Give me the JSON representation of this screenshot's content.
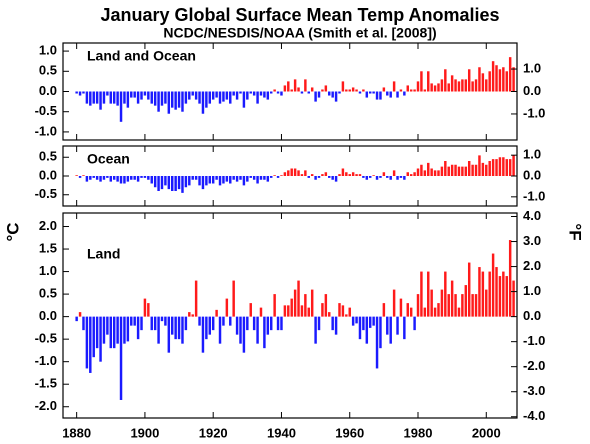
{
  "chart_data": [
    {
      "type": "bar",
      "title": "January Global Surface Mean Temp Anomalies",
      "subtitle": "NCDC/NESDIS/NOAA (Smith et al. [2008])",
      "label": "Land and Ocean",
      "positive_color": "#ff1a1a",
      "negative_color": "#1a1aff",
      "xlim": [
        1876,
        2009
      ],
      "ylim": [
        -1.2,
        1.2
      ],
      "yticks": [
        {
          "value": 1,
          "label": "1.0"
        },
        0.5,
        {
          "value": 0,
          "label": "0.0"
        },
        -0.5,
        {
          "value": -1,
          "label": "-1.0"
        }
      ],
      "y2lim": [
        -2.16,
        2.16
      ],
      "y2ticks": [
        {
          "value": 1,
          "label": "1.0"
        },
        {
          "value": 0,
          "label": "0.0"
        },
        {
          "value": -1,
          "label": "-1.0"
        }
      ],
      "x": [
        1880,
        1881,
        1882,
        1883,
        1884,
        1885,
        1886,
        1887,
        1888,
        1889,
        1890,
        1891,
        1892,
        1893,
        1894,
        1895,
        1896,
        1897,
        1898,
        1899,
        1900,
        1901,
        1902,
        1903,
        1904,
        1905,
        1906,
        1907,
        1908,
        1909,
        1910,
        1911,
        1912,
        1913,
        1914,
        1915,
        1916,
        1917,
        1918,
        1919,
        1920,
        1921,
        1922,
        1923,
        1924,
        1925,
        1926,
        1927,
        1928,
        1929,
        1930,
        1931,
        1932,
        1933,
        1934,
        1935,
        1936,
        1937,
        1938,
        1939,
        1940,
        1941,
        1942,
        1943,
        1944,
        1945,
        1946,
        1947,
        1948,
        1949,
        1950,
        1951,
        1952,
        1953,
        1954,
        1955,
        1956,
        1957,
        1958,
        1959,
        1960,
        1961,
        1962,
        1963,
        1964,
        1965,
        1966,
        1967,
        1968,
        1969,
        1970,
        1971,
        1972,
        1973,
        1974,
        1975,
        1976,
        1977,
        1978,
        1979,
        1980,
        1981,
        1982,
        1983,
        1984,
        1985,
        1986,
        1987,
        1988,
        1989,
        1990,
        1991,
        1992,
        1993,
        1994,
        1995,
        1996,
        1997,
        1998,
        1999,
        2000,
        2001,
        2002,
        2003,
        2004,
        2005,
        2006,
        2007,
        2008
      ],
      "values": [
        -0.05,
        -0.1,
        -0.05,
        -0.3,
        -0.35,
        -0.3,
        -0.3,
        -0.45,
        -0.3,
        -0.1,
        -0.3,
        -0.3,
        -0.35,
        -0.75,
        -0.3,
        -0.4,
        -0.15,
        -0.15,
        -0.3,
        -0.2,
        -0.1,
        -0.2,
        -0.3,
        -0.35,
        -0.5,
        -0.35,
        -0.3,
        -0.55,
        -0.4,
        -0.45,
        -0.4,
        -0.5,
        -0.3,
        -0.2,
        -0.1,
        -0.2,
        -0.3,
        -0.55,
        -0.4,
        -0.3,
        -0.2,
        -0.15,
        -0.3,
        -0.25,
        -0.2,
        -0.3,
        -0.1,
        -0.2,
        -0.05,
        -0.4,
        -0.2,
        -0.05,
        -0.1,
        -0.3,
        -0.1,
        -0.15,
        -0.2,
        -0.05,
        0.05,
        -0.05,
        -0.1,
        0.15,
        0.25,
        0.05,
        0.3,
        0.1,
        -0.05,
        0.3,
        -0.05,
        0.1,
        -0.25,
        -0.15,
        0.05,
        0.15,
        -0.1,
        -0.15,
        -0.25,
        -0.05,
        0.25,
        0.05,
        0.05,
        0.1,
        0.05,
        -0.05,
        0.05,
        -0.15,
        -0.05,
        -0.05,
        -0.2,
        -0.2,
        0.1,
        -0.1,
        -0.15,
        0.25,
        -0.15,
        0.05,
        -0.1,
        0.15,
        0.05,
        0.05,
        0.25,
        0.5,
        0.05,
        0.5,
        0.2,
        0.15,
        0.2,
        0.3,
        0.55,
        0.2,
        0.4,
        0.3,
        0.25,
        0.3,
        0.3,
        0.55,
        0.25,
        0.3,
        0.6,
        0.45,
        0.3,
        0.5,
        0.75,
        0.65,
        0.55,
        0.6,
        0.5,
        0.85,
        0.6
      ]
    },
    {
      "type": "bar",
      "label": "Ocean",
      "positive_color": "#ff1a1a",
      "negative_color": "#1a1aff",
      "xlim": [
        1876,
        2009
      ],
      "ylim": [
        -0.8,
        0.8
      ],
      "yticks": [
        0.5,
        {
          "value": 0,
          "label": "0.0"
        },
        -0.5
      ],
      "y2lim": [
        -1.44,
        1.44
      ],
      "y2ticks": [
        {
          "value": 1,
          "label": "1.0"
        },
        {
          "value": 0,
          "label": "0.0"
        },
        {
          "value": -1,
          "label": "-1.0"
        }
      ],
      "x": [
        1880,
        1881,
        1882,
        1883,
        1884,
        1885,
        1886,
        1887,
        1888,
        1889,
        1890,
        1891,
        1892,
        1893,
        1894,
        1895,
        1896,
        1897,
        1898,
        1899,
        1900,
        1901,
        1902,
        1903,
        1904,
        1905,
        1906,
        1907,
        1908,
        1909,
        1910,
        1911,
        1912,
        1913,
        1914,
        1915,
        1916,
        1917,
        1918,
        1919,
        1920,
        1921,
        1922,
        1923,
        1924,
        1925,
        1926,
        1927,
        1928,
        1929,
        1930,
        1931,
        1932,
        1933,
        1934,
        1935,
        1936,
        1937,
        1938,
        1939,
        1940,
        1941,
        1942,
        1943,
        1944,
        1945,
        1946,
        1947,
        1948,
        1949,
        1950,
        1951,
        1952,
        1953,
        1954,
        1955,
        1956,
        1957,
        1958,
        1959,
        1960,
        1961,
        1962,
        1963,
        1964,
        1965,
        1966,
        1967,
        1968,
        1969,
        1970,
        1971,
        1972,
        1973,
        1974,
        1975,
        1976,
        1977,
        1978,
        1979,
        1980,
        1981,
        1982,
        1983,
        1984,
        1985,
        1986,
        1987,
        1988,
        1989,
        1990,
        1991,
        1992,
        1993,
        1994,
        1995,
        1996,
        1997,
        1998,
        1999,
        2000,
        2001,
        2002,
        2003,
        2004,
        2005,
        2006,
        2007,
        2008
      ],
      "values": [
        0.02,
        -0.05,
        0.02,
        -0.15,
        -0.1,
        -0.05,
        -0.1,
        -0.15,
        -0.1,
        -0.05,
        -0.15,
        -0.1,
        -0.15,
        -0.2,
        -0.2,
        -0.15,
        -0.1,
        -0.1,
        -0.15,
        -0.05,
        -0.05,
        -0.1,
        -0.2,
        -0.3,
        -0.4,
        -0.35,
        -0.25,
        -0.35,
        -0.4,
        -0.4,
        -0.35,
        -0.45,
        -0.3,
        -0.25,
        -0.1,
        -0.1,
        -0.25,
        -0.35,
        -0.25,
        -0.2,
        -0.2,
        -0.1,
        -0.25,
        -0.2,
        -0.15,
        -0.2,
        -0.1,
        -0.15,
        -0.1,
        -0.25,
        -0.15,
        -0.05,
        -0.1,
        -0.2,
        -0.1,
        -0.1,
        -0.15,
        -0.05,
        0.02,
        -0.05,
        0.02,
        0.1,
        0.15,
        0.2,
        0.2,
        0.15,
        0.05,
        0.15,
        -0.05,
        0.05,
        -0.1,
        -0.05,
        0.05,
        0.1,
        -0.05,
        -0.1,
        -0.15,
        0.05,
        0.2,
        0.1,
        0.05,
        0.1,
        0.05,
        0.05,
        -0.05,
        -0.1,
        -0.05,
        0.02,
        -0.1,
        -0.05,
        0.1,
        -0.05,
        -0.1,
        0.15,
        -0.1,
        -0.05,
        -0.1,
        0.1,
        0.05,
        0.1,
        0.2,
        0.3,
        0.15,
        0.35,
        0.2,
        0.15,
        0.15,
        0.25,
        0.4,
        0.25,
        0.3,
        0.3,
        0.25,
        0.25,
        0.25,
        0.4,
        0.3,
        0.3,
        0.55,
        0.35,
        0.3,
        0.4,
        0.45,
        0.45,
        0.5,
        0.5,
        0.45,
        0.45,
        0.55
      ]
    },
    {
      "type": "bar",
      "label": "Land",
      "ylabel": "°C",
      "y2label": "°F",
      "positive_color": "#ff1a1a",
      "negative_color": "#1a1aff",
      "xlim": [
        1876,
        2009
      ],
      "xticks": [
        1880,
        1900,
        1920,
        1940,
        1960,
        1980,
        2000
      ],
      "ylim": [
        -2.25,
        2.3
      ],
      "yticks": [
        {
          "value": 2,
          "label": "2.0"
        },
        1.5,
        {
          "value": 1,
          "label": "1.0"
        },
        0.5,
        {
          "value": 0,
          "label": "0.0"
        },
        -0.5,
        {
          "value": -1,
          "label": "-1.0"
        },
        -1.5,
        {
          "value": -2,
          "label": "-2.0"
        }
      ],
      "y2lim": [
        -4.05,
        4.14
      ],
      "y2ticks": [
        {
          "value": 4,
          "label": "4.0"
        },
        {
          "value": 3,
          "label": "3.0"
        },
        {
          "value": 2,
          "label": "2.0"
        },
        {
          "value": 1,
          "label": "1.0"
        },
        {
          "value": 0,
          "label": "0.0"
        },
        {
          "value": -1,
          "label": "-1.0"
        },
        {
          "value": -2,
          "label": "-2.0"
        },
        {
          "value": -3,
          "label": "-3.0"
        },
        {
          "value": -4,
          "label": "-4.0"
        }
      ],
      "x": [
        1880,
        1881,
        1882,
        1883,
        1884,
        1885,
        1886,
        1887,
        1888,
        1889,
        1890,
        1891,
        1892,
        1893,
        1894,
        1895,
        1896,
        1897,
        1898,
        1899,
        1900,
        1901,
        1902,
        1903,
        1904,
        1905,
        1906,
        1907,
        1908,
        1909,
        1910,
        1911,
        1912,
        1913,
        1914,
        1915,
        1916,
        1917,
        1918,
        1919,
        1920,
        1921,
        1922,
        1923,
        1924,
        1925,
        1926,
        1927,
        1928,
        1929,
        1930,
        1931,
        1932,
        1933,
        1934,
        1935,
        1936,
        1937,
        1938,
        1939,
        1940,
        1941,
        1942,
        1943,
        1944,
        1945,
        1946,
        1947,
        1948,
        1949,
        1950,
        1951,
        1952,
        1953,
        1954,
        1955,
        1956,
        1957,
        1958,
        1959,
        1960,
        1961,
        1962,
        1963,
        1964,
        1965,
        1966,
        1967,
        1968,
        1969,
        1970,
        1971,
        1972,
        1973,
        1974,
        1975,
        1976,
        1977,
        1978,
        1979,
        1980,
        1981,
        1982,
        1983,
        1984,
        1985,
        1986,
        1987,
        1988,
        1989,
        1990,
        1991,
        1992,
        1993,
        1994,
        1995,
        1996,
        1997,
        1998,
        1999,
        2000,
        2001,
        2002,
        2003,
        2004,
        2005,
        2006,
        2007,
        2008
      ],
      "values": [
        -0.1,
        0.1,
        -0.3,
        -1.15,
        -1.25,
        -0.9,
        -0.7,
        -1.0,
        -0.6,
        -0.4,
        -0.7,
        -0.7,
        -0.6,
        -1.85,
        -0.6,
        -0.55,
        -0.2,
        -0.2,
        -0.5,
        -0.3,
        0.4,
        0.3,
        -0.3,
        -0.3,
        -0.6,
        -0.1,
        -0.2,
        -0.8,
        -0.4,
        -0.5,
        -0.5,
        -0.6,
        -0.3,
        0.1,
        0.05,
        0.8,
        -0.2,
        -0.8,
        -0.5,
        -0.4,
        -0.3,
        0.15,
        -0.6,
        -0.2,
        0.4,
        -0.2,
        0.8,
        -0.4,
        -0.6,
        -0.8,
        -0.3,
        0.3,
        -0.3,
        -0.6,
        0.2,
        -0.7,
        -0.4,
        -0.3,
        0.5,
        -0.3,
        -0.3,
        0.25,
        0.25,
        0.4,
        0.6,
        0.8,
        0.25,
        0.5,
        0.2,
        0.6,
        -0.6,
        -0.3,
        0.3,
        0.5,
        0.1,
        -0.3,
        -0.4,
        0.3,
        0.25,
        0.05,
        0.2,
        -0.2,
        -0.15,
        -0.5,
        -0.3,
        -0.6,
        -0.25,
        -0.2,
        -1.15,
        -0.7,
        0.3,
        -0.4,
        -0.6,
        0.6,
        -0.4,
        0.4,
        -0.5,
        0.3,
        0.2,
        -0.3,
        0.5,
        1.0,
        0.2,
        1.0,
        0.6,
        0.2,
        0.3,
        0.6,
        1.0,
        0.5,
        0.8,
        0.5,
        0.2,
        0.5,
        0.7,
        1.2,
        0.5,
        0.5,
        1.1,
        1.0,
        0.6,
        1.0,
        1.4,
        1.1,
        0.9,
        1.0,
        0.9,
        1.7,
        0.8
      ]
    }
  ]
}
